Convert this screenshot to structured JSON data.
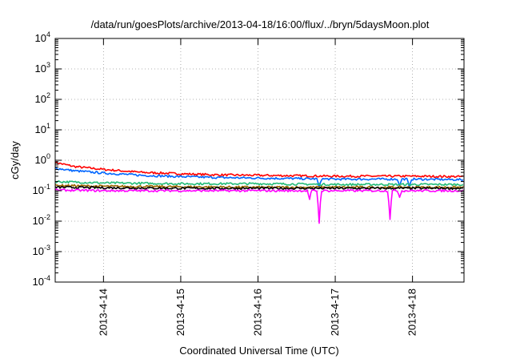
{
  "chart_data": {
    "type": "line",
    "title": "/data/run/goesPlots/archive/2013-04-18/16:00/flux/../bryn/5daysMoon.plot",
    "xlabel": "Coordinated Universal Time (UTC)",
    "ylabel": "cGy/day",
    "yscale": "log",
    "ylim": [
      0.0001,
      10000
    ],
    "y_ticks": [
      {
        "base": "10",
        "exp": "-4"
      },
      {
        "base": "10",
        "exp": "-3"
      },
      {
        "base": "10",
        "exp": "-2"
      },
      {
        "base": "10",
        "exp": "-1"
      },
      {
        "base": "10",
        "exp": "0"
      },
      {
        "base": "10",
        "exp": "1"
      },
      {
        "base": "10",
        "exp": "2"
      },
      {
        "base": "10",
        "exp": "3"
      },
      {
        "base": "10",
        "exp": "4"
      }
    ],
    "xlim": [
      "2013-04-13 09:00",
      "2013-04-18 16:00"
    ],
    "x_ticks": [
      "2013-4-14",
      "2013-4-15",
      "2013-4-16",
      "2013-4-17",
      "2013-4-18"
    ],
    "grid": true,
    "series": [
      {
        "color": "#ff0000",
        "x": [
          "2013-04-13 09:00",
          "2013-04-13 15:00",
          "2013-04-14 00:00",
          "2013-04-14 12:00",
          "2013-04-15 00:00",
          "2013-04-15 12:00",
          "2013-04-16 00:00",
          "2013-04-16 12:00",
          "2013-04-17 00:00",
          "2013-04-17 12:00",
          "2013-04-18 00:00",
          "2013-04-18 16:00"
        ],
        "values": [
          0.85,
          0.62,
          0.5,
          0.4,
          0.36,
          0.33,
          0.32,
          0.31,
          0.3,
          0.3,
          0.3,
          0.29
        ]
      },
      {
        "color": "#0066ff",
        "x": [
          "2013-04-13 09:00",
          "2013-04-13 15:00",
          "2013-04-14 00:00",
          "2013-04-14 12:00",
          "2013-04-15 00:00",
          "2013-04-15 12:00",
          "2013-04-16 00:00",
          "2013-04-16 12:00",
          "2013-04-17 00:00",
          "2013-04-17 12:00",
          "2013-04-18 00:00",
          "2013-04-18 16:00"
        ],
        "values": [
          0.55,
          0.45,
          0.38,
          0.32,
          0.29,
          0.27,
          0.26,
          0.25,
          0.24,
          0.24,
          0.24,
          0.23
        ],
        "dips": [
          {
            "x": "2013-04-16 19:00",
            "value": 0.12
          },
          {
            "x": "2013-04-17 20:00",
            "value": 0.14
          },
          {
            "x": "2013-04-17 23:00",
            "value": 0.13
          }
        ]
      },
      {
        "color": "#22bb77",
        "x": [
          "2013-04-13 09:00",
          "2013-04-14 00:00",
          "2013-04-15 00:00",
          "2013-04-16 00:00",
          "2013-04-17 00:00",
          "2013-04-18 00:00",
          "2013-04-18 16:00"
        ],
        "values": [
          0.2,
          0.18,
          0.17,
          0.17,
          0.16,
          0.16,
          0.16
        ]
      },
      {
        "color": "#996600",
        "x": [
          "2013-04-13 09:00",
          "2013-04-14 00:00",
          "2013-04-15 00:00",
          "2013-04-16 00:00",
          "2013-04-17 00:00",
          "2013-04-18 00:00",
          "2013-04-18 16:00"
        ],
        "values": [
          0.15,
          0.14,
          0.135,
          0.13,
          0.13,
          0.13,
          0.13
        ]
      },
      {
        "color": "#000000",
        "x": [
          "2013-04-13 09:00",
          "2013-04-14 00:00",
          "2013-04-15 00:00",
          "2013-04-16 00:00",
          "2013-04-17 00:00",
          "2013-04-18 00:00",
          "2013-04-18 16:00"
        ],
        "values": [
          0.13,
          0.125,
          0.12,
          0.12,
          0.12,
          0.12,
          0.12
        ]
      },
      {
        "color": "#ff00ff",
        "x": [
          "2013-04-13 09:00",
          "2013-04-14 00:00",
          "2013-04-15 00:00",
          "2013-04-16 00:00",
          "2013-04-17 00:00",
          "2013-04-18 00:00",
          "2013-04-18 16:00"
        ],
        "values": [
          0.105,
          0.1,
          0.1,
          0.1,
          0.1,
          0.1,
          0.1
        ],
        "dips": [
          {
            "x": "2013-04-16 16:00",
            "value": 0.05
          },
          {
            "x": "2013-04-16 19:00",
            "value": 0.008
          },
          {
            "x": "2013-04-17 17:00",
            "value": 0.011
          },
          {
            "x": "2013-04-17 20:00",
            "value": 0.06
          }
        ]
      }
    ]
  }
}
